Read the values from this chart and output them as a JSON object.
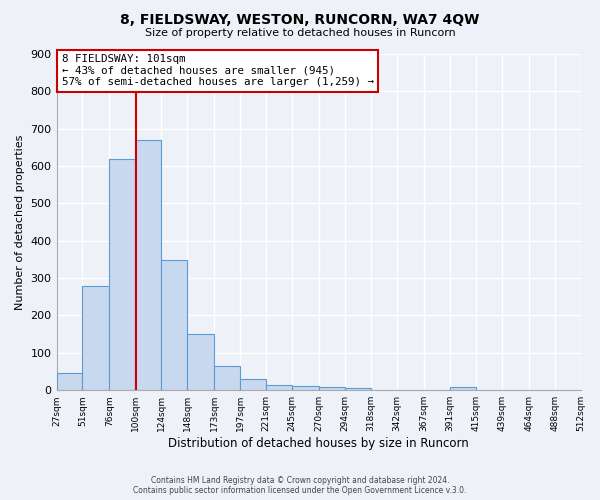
{
  "title": "8, FIELDSWAY, WESTON, RUNCORN, WA7 4QW",
  "subtitle": "Size of property relative to detached houses in Runcorn",
  "xlabel": "Distribution of detached houses by size in Runcorn",
  "ylabel": "Number of detached properties",
  "bar_edges": [
    27,
    51,
    76,
    100,
    124,
    148,
    173,
    197,
    221,
    245,
    270,
    294,
    318,
    342,
    367,
    391,
    415,
    439,
    464,
    488,
    512
  ],
  "bar_heights": [
    45,
    280,
    620,
    670,
    348,
    150,
    65,
    30,
    15,
    10,
    8,
    7,
    0,
    0,
    0,
    8,
    0,
    0,
    0,
    0
  ],
  "bar_color": "#c8d8ee",
  "bar_edge_color": "#5b9bd5",
  "vline_x": 101,
  "vline_color": "#cc0000",
  "annotation_box_color": "#cc0000",
  "annotation_line1": "8 FIELDSWAY: 101sqm",
  "annotation_line2": "← 43% of detached houses are smaller (945)",
  "annotation_line3": "57% of semi-detached houses are larger (1,259) →",
  "ylim": [
    0,
    900
  ],
  "yticks": [
    0,
    100,
    200,
    300,
    400,
    500,
    600,
    700,
    800,
    900
  ],
  "footer_line1": "Contains HM Land Registry data © Crown copyright and database right 2024.",
  "footer_line2": "Contains public sector information licensed under the Open Government Licence v.3.0.",
  "bg_color": "#eef2f8",
  "grid_color": "#ffffff"
}
